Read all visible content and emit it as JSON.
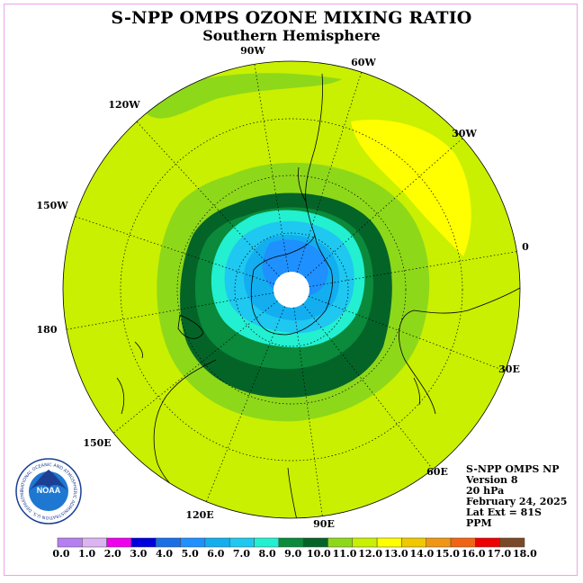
{
  "title": "S-NPP OMPS OZONE MIXING RATIO",
  "subtitle": "Southern Hemisphere",
  "logo": {
    "name": "NOAA",
    "ring_text": "NATIONAL OCEANIC AND ATMOSPHERIC ADMINISTRATION U.S. DEPARTMENT OF COMMERCE"
  },
  "info": {
    "instrument": "S-NPP OMPS NP",
    "version": "Version 8",
    "level": "20 hPa",
    "date": "February 24, 2025",
    "lat_ext": "Lat Ext = 81S",
    "units": "PPM"
  },
  "longitude_labels": [
    "90W",
    "60W",
    "30W",
    "0",
    "30E",
    "60E",
    "90E",
    "120E",
    "150E",
    "180",
    "150W",
    "120W"
  ],
  "colorbar": {
    "ticks": [
      "0.0",
      "1.0",
      "2.0",
      "3.0",
      "4.0",
      "5.0",
      "6.0",
      "7.0",
      "8.0",
      "9.0",
      "10.0",
      "11.0",
      "12.0",
      "13.0",
      "14.0",
      "15.0",
      "16.0",
      "17.0",
      "18.0"
    ],
    "colors": [
      "#b57ff2",
      "#dcb4f2",
      "#ee00ee",
      "#0000dd",
      "#1a6fe6",
      "#1e90ff",
      "#12aef0",
      "#1ec8f0",
      "#22f0d0",
      "#0a8a3a",
      "#046428",
      "#8ed81a",
      "#c8f000",
      "#ffff00",
      "#f0c800",
      "#f09614",
      "#f06414",
      "#ee0000",
      "#7a4a28"
    ]
  },
  "colors": {
    "background_field": "#c8f000",
    "ocean_outline": "#000000",
    "frame": "#e8a4e8"
  }
}
